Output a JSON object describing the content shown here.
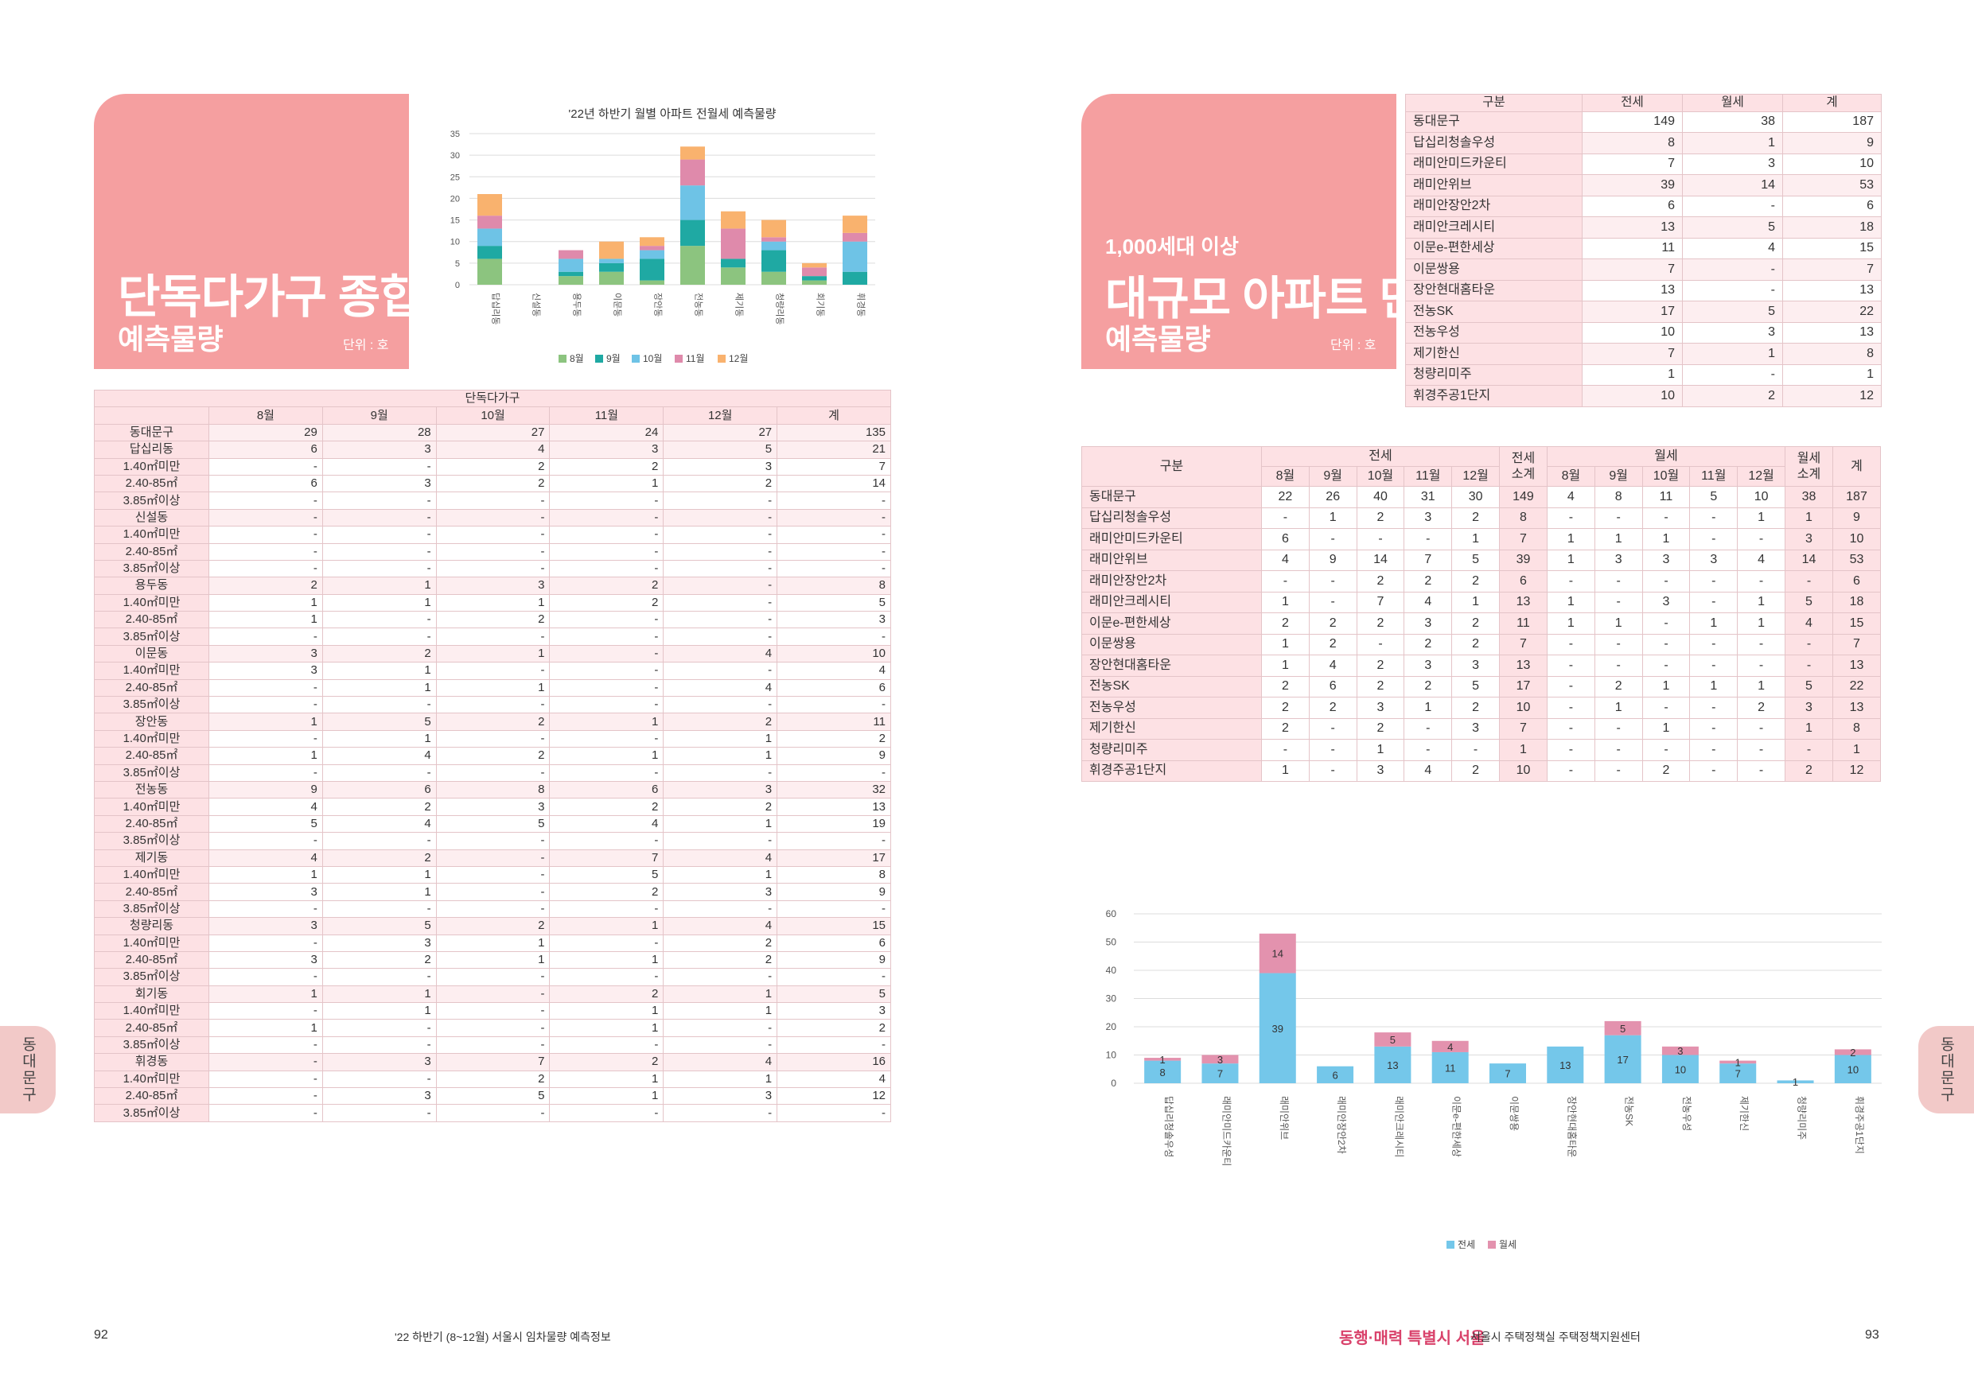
{
  "left": {
    "title_main": "단독다가구 종합",
    "title_sub": "예측물량",
    "unit": "단위 : 호",
    "page_number": "92",
    "footer_text": "'22 하반기 (8~12월) 서울시 임차물량 예측정보",
    "side_tab": "동대문구"
  },
  "right": {
    "title_pre": "1,000세대 이상",
    "title_main": "대규모 아파트 단지별",
    "title_sub": "예측물량",
    "unit": "단위 : 호",
    "page_number": "93",
    "footer_logo": "동행·매력 특별시 서울",
    "footer_text": "서울시 주택정책실 주택정책지원센터",
    "side_tab": "동대문구"
  },
  "colors": {
    "pink_box": "#f59fa0",
    "aug": "#8cc47f",
    "sep": "#1fa9a3",
    "oct": "#6ec3e6",
    "nov": "#df8aab",
    "dec": "#f9b26e",
    "jeonse": "#74c7ea",
    "wolse": "#e392ae"
  },
  "chart_data": [
    {
      "type": "bar",
      "stacked": true,
      "title": "'22년 하반기 월별 아파트 전월세 예측물량",
      "categories": [
        "답십리동",
        "신설동",
        "용두동",
        "이문동",
        "장안동",
        "전농동",
        "제기동",
        "청량리동",
        "회기동",
        "휘경동"
      ],
      "series": [
        {
          "name": "8월",
          "values": [
            6,
            0,
            2,
            3,
            1,
            9,
            4,
            3,
            1,
            0
          ]
        },
        {
          "name": "9월",
          "values": [
            3,
            0,
            1,
            2,
            5,
            6,
            2,
            5,
            1,
            3
          ]
        },
        {
          "name": "10월",
          "values": [
            4,
            0,
            3,
            1,
            2,
            8,
            0,
            2,
            0,
            7
          ]
        },
        {
          "name": "11월",
          "values": [
            3,
            0,
            2,
            0,
            1,
            6,
            7,
            1,
            2,
            2
          ]
        },
        {
          "name": "12월",
          "values": [
            5,
            0,
            0,
            4,
            2,
            3,
            4,
            4,
            1,
            4
          ]
        }
      ],
      "ylim": [
        0,
        35
      ],
      "yticks": [
        0,
        5,
        10,
        15,
        20,
        25,
        30,
        35
      ],
      "legend": "bottom",
      "grid": true
    },
    {
      "type": "bar",
      "stacked": true,
      "title": "",
      "categories": [
        "답십리청솔우성",
        "래미안미드카운티",
        "래미안위브",
        "래미안장안2차",
        "래미안크레시티",
        "이문e-편한세상",
        "이문쌍용",
        "장안현대홈타운",
        "전농SK",
        "전농우성",
        "제기한신",
        "청량리미주",
        "휘경주공1단지"
      ],
      "series": [
        {
          "name": "전세",
          "values": [
            8,
            7,
            39,
            6,
            13,
            11,
            7,
            13,
            17,
            10,
            7,
            1,
            10
          ]
        },
        {
          "name": "월세",
          "values": [
            1,
            3,
            14,
            0,
            5,
            4,
            0,
            0,
            5,
            3,
            1,
            0,
            2
          ]
        }
      ],
      "ylim": [
        0,
        60
      ],
      "yticks": [
        0,
        10,
        20,
        30,
        40,
        50,
        60
      ],
      "legend": "bottom",
      "grid": true
    }
  ],
  "table_detached": {
    "group_header": "단독다가구",
    "columns": [
      "8월",
      "9월",
      "10월",
      "11월",
      "12월",
      "계"
    ],
    "rows": [
      {
        "label": "동대문구",
        "values": [
          "29",
          "28",
          "27",
          "24",
          "27",
          "135"
        ],
        "group": true
      },
      {
        "label": "답십리동",
        "values": [
          "6",
          "3",
          "4",
          "3",
          "5",
          "21"
        ],
        "group": true
      },
      {
        "label": "1.40㎡미만",
        "values": [
          "-",
          "-",
          "2",
          "2",
          "3",
          "7"
        ]
      },
      {
        "label": "2.40-85㎡",
        "values": [
          "6",
          "3",
          "2",
          "1",
          "2",
          "14"
        ]
      },
      {
        "label": "3.85㎡이상",
        "values": [
          "-",
          "-",
          "-",
          "-",
          "-",
          "-"
        ]
      },
      {
        "label": "신설동",
        "values": [
          "-",
          "-",
          "-",
          "-",
          "-",
          "-"
        ],
        "group": true
      },
      {
        "label": "1.40㎡미만",
        "values": [
          "-",
          "-",
          "-",
          "-",
          "-",
          "-"
        ]
      },
      {
        "label": "2.40-85㎡",
        "values": [
          "-",
          "-",
          "-",
          "-",
          "-",
          "-"
        ]
      },
      {
        "label": "3.85㎡이상",
        "values": [
          "-",
          "-",
          "-",
          "-",
          "-",
          "-"
        ]
      },
      {
        "label": "용두동",
        "values": [
          "2",
          "1",
          "3",
          "2",
          "-",
          "8"
        ],
        "group": true
      },
      {
        "label": "1.40㎡미만",
        "values": [
          "1",
          "1",
          "1",
          "2",
          "-",
          "5"
        ]
      },
      {
        "label": "2.40-85㎡",
        "values": [
          "1",
          "-",
          "2",
          "-",
          "-",
          "3"
        ]
      },
      {
        "label": "3.85㎡이상",
        "values": [
          "-",
          "-",
          "-",
          "-",
          "-",
          "-"
        ]
      },
      {
        "label": "이문동",
        "values": [
          "3",
          "2",
          "1",
          "-",
          "4",
          "10"
        ],
        "group": true
      },
      {
        "label": "1.40㎡미만",
        "values": [
          "3",
          "1",
          "-",
          "-",
          "-",
          "4"
        ]
      },
      {
        "label": "2.40-85㎡",
        "values": [
          "-",
          "1",
          "1",
          "-",
          "4",
          "6"
        ]
      },
      {
        "label": "3.85㎡이상",
        "values": [
          "-",
          "-",
          "-",
          "-",
          "-",
          "-"
        ]
      },
      {
        "label": "장안동",
        "values": [
          "1",
          "5",
          "2",
          "1",
          "2",
          "11"
        ],
        "group": true
      },
      {
        "label": "1.40㎡미만",
        "values": [
          "-",
          "1",
          "-",
          "-",
          "1",
          "2"
        ]
      },
      {
        "label": "2.40-85㎡",
        "values": [
          "1",
          "4",
          "2",
          "1",
          "1",
          "9"
        ]
      },
      {
        "label": "3.85㎡이상",
        "values": [
          "-",
          "-",
          "-",
          "-",
          "-",
          "-"
        ]
      },
      {
        "label": "전농동",
        "values": [
          "9",
          "6",
          "8",
          "6",
          "3",
          "32"
        ],
        "group": true
      },
      {
        "label": "1.40㎡미만",
        "values": [
          "4",
          "2",
          "3",
          "2",
          "2",
          "13"
        ]
      },
      {
        "label": "2.40-85㎡",
        "values": [
          "5",
          "4",
          "5",
          "4",
          "1",
          "19"
        ]
      },
      {
        "label": "3.85㎡이상",
        "values": [
          "-",
          "-",
          "-",
          "-",
          "-",
          "-"
        ]
      },
      {
        "label": "제기동",
        "values": [
          "4",
          "2",
          "-",
          "7",
          "4",
          "17"
        ],
        "group": true
      },
      {
        "label": "1.40㎡미만",
        "values": [
          "1",
          "1",
          "-",
          "5",
          "1",
          "8"
        ]
      },
      {
        "label": "2.40-85㎡",
        "values": [
          "3",
          "1",
          "-",
          "2",
          "3",
          "9"
        ]
      },
      {
        "label": "3.85㎡이상",
        "values": [
          "-",
          "-",
          "-",
          "-",
          "-",
          "-"
        ]
      },
      {
        "label": "청량리동",
        "values": [
          "3",
          "5",
          "2",
          "1",
          "4",
          "15"
        ],
        "group": true
      },
      {
        "label": "1.40㎡미만",
        "values": [
          "-",
          "3",
          "1",
          "-",
          "2",
          "6"
        ]
      },
      {
        "label": "2.40-85㎡",
        "values": [
          "3",
          "2",
          "1",
          "1",
          "2",
          "9"
        ]
      },
      {
        "label": "3.85㎡이상",
        "values": [
          "-",
          "-",
          "-",
          "-",
          "-",
          "-"
        ]
      },
      {
        "label": "회기동",
        "values": [
          "1",
          "1",
          "-",
          "2",
          "1",
          "5"
        ],
        "group": true
      },
      {
        "label": "1.40㎡미만",
        "values": [
          "-",
          "1",
          "-",
          "1",
          "1",
          "3"
        ]
      },
      {
        "label": "2.40-85㎡",
        "values": [
          "1",
          "-",
          "-",
          "1",
          "-",
          "2"
        ]
      },
      {
        "label": "3.85㎡이상",
        "values": [
          "-",
          "-",
          "-",
          "-",
          "-",
          "-"
        ]
      },
      {
        "label": "휘경동",
        "values": [
          "-",
          "3",
          "7",
          "2",
          "4",
          "16"
        ],
        "group": true
      },
      {
        "label": "1.40㎡미만",
        "values": [
          "-",
          "-",
          "2",
          "1",
          "1",
          "4"
        ]
      },
      {
        "label": "2.40-85㎡",
        "values": [
          "-",
          "3",
          "5",
          "1",
          "3",
          "12"
        ]
      },
      {
        "label": "3.85㎡이상",
        "values": [
          "-",
          "-",
          "-",
          "-",
          "-",
          "-"
        ]
      }
    ]
  },
  "table_summary": {
    "columns": [
      "구분",
      "전세",
      "월세",
      "계"
    ],
    "rows": [
      {
        "label": "동대문구",
        "values": [
          "149",
          "38",
          "187"
        ]
      },
      {
        "label": "답십리청솔우성",
        "values": [
          "8",
          "1",
          "9"
        ]
      },
      {
        "label": "래미안미드카운티",
        "values": [
          "7",
          "3",
          "10"
        ]
      },
      {
        "label": "래미안위브",
        "values": [
          "39",
          "14",
          "53"
        ]
      },
      {
        "label": "래미안장안2차",
        "values": [
          "6",
          "-",
          "6"
        ]
      },
      {
        "label": "래미안크레시티",
        "values": [
          "13",
          "5",
          "18"
        ]
      },
      {
        "label": "이문e-편한세상",
        "values": [
          "11",
          "4",
          "15"
        ]
      },
      {
        "label": "이문쌍용",
        "values": [
          "7",
          "-",
          "7"
        ]
      },
      {
        "label": "장안현대홈타운",
        "values": [
          "13",
          "-",
          "13"
        ]
      },
      {
        "label": "전농SK",
        "values": [
          "17",
          "5",
          "22"
        ]
      },
      {
        "label": "전농우성",
        "values": [
          "10",
          "3",
          "13"
        ]
      },
      {
        "label": "제기한신",
        "values": [
          "7",
          "1",
          "8"
        ]
      },
      {
        "label": "청량리미주",
        "values": [
          "1",
          "-",
          "1"
        ]
      },
      {
        "label": "휘경주공1단지",
        "values": [
          "10",
          "2",
          "12"
        ]
      }
    ]
  },
  "table_monthly": {
    "header_label": "구분",
    "jeonse_label": "전세",
    "jeonse_sub_label": "전세 소계",
    "wolse_label": "월세",
    "wolse_sub_label": "월세 소계",
    "total_label": "계",
    "months": [
      "8월",
      "9월",
      "10월",
      "11월",
      "12월"
    ],
    "rows": [
      {
        "label": "동대문구",
        "jeonse": [
          "22",
          "26",
          "40",
          "31",
          "30"
        ],
        "jeonse_sub": "149",
        "wolse": [
          "4",
          "8",
          "11",
          "5",
          "10"
        ],
        "wolse_sub": "38",
        "total": "187"
      },
      {
        "label": "답십리청솔우성",
        "jeonse": [
          "-",
          "1",
          "2",
          "3",
          "2"
        ],
        "jeonse_sub": "8",
        "wolse": [
          "-",
          "-",
          "-",
          "-",
          "1"
        ],
        "wolse_sub": "1",
        "total": "9"
      },
      {
        "label": "래미안미드카운티",
        "jeonse": [
          "6",
          "-",
          "-",
          "-",
          "1"
        ],
        "jeonse_sub": "7",
        "wolse": [
          "1",
          "1",
          "1",
          "-",
          "-"
        ],
        "wolse_sub": "3",
        "total": "10"
      },
      {
        "label": "래미안위브",
        "jeonse": [
          "4",
          "9",
          "14",
          "7",
          "5"
        ],
        "jeonse_sub": "39",
        "wolse": [
          "1",
          "3",
          "3",
          "3",
          "4"
        ],
        "wolse_sub": "14",
        "total": "53"
      },
      {
        "label": "래미안장안2차",
        "jeonse": [
          "-",
          "-",
          "2",
          "2",
          "2"
        ],
        "jeonse_sub": "6",
        "wolse": [
          "-",
          "-",
          "-",
          "-",
          "-"
        ],
        "wolse_sub": "-",
        "total": "6"
      },
      {
        "label": "래미안크레시티",
        "jeonse": [
          "1",
          "-",
          "7",
          "4",
          "1"
        ],
        "jeonse_sub": "13",
        "wolse": [
          "1",
          "-",
          "3",
          "-",
          "1"
        ],
        "wolse_sub": "5",
        "total": "18"
      },
      {
        "label": "이문e-편한세상",
        "jeonse": [
          "2",
          "2",
          "2",
          "3",
          "2"
        ],
        "jeonse_sub": "11",
        "wolse": [
          "1",
          "1",
          "-",
          "1",
          "1"
        ],
        "wolse_sub": "4",
        "total": "15"
      },
      {
        "label": "이문쌍용",
        "jeonse": [
          "1",
          "2",
          "-",
          "2",
          "2"
        ],
        "jeonse_sub": "7",
        "wolse": [
          "-",
          "-",
          "-",
          "-",
          "-"
        ],
        "wolse_sub": "-",
        "total": "7"
      },
      {
        "label": "장안현대홈타운",
        "jeonse": [
          "1",
          "4",
          "2",
          "3",
          "3"
        ],
        "jeonse_sub": "13",
        "wolse": [
          "-",
          "-",
          "-",
          "-",
          "-"
        ],
        "wolse_sub": "-",
        "total": "13"
      },
      {
        "label": "전농SK",
        "jeonse": [
          "2",
          "6",
          "2",
          "2",
          "5"
        ],
        "jeonse_sub": "17",
        "wolse": [
          "-",
          "2",
          "1",
          "1",
          "1"
        ],
        "wolse_sub": "5",
        "total": "22"
      },
      {
        "label": "전농우성",
        "jeonse": [
          "2",
          "2",
          "3",
          "1",
          "2"
        ],
        "jeonse_sub": "10",
        "wolse": [
          "-",
          "1",
          "-",
          "-",
          "2"
        ],
        "wolse_sub": "3",
        "total": "13"
      },
      {
        "label": "제기한신",
        "jeonse": [
          "2",
          "-",
          "2",
          "-",
          "3"
        ],
        "jeonse_sub": "7",
        "wolse": [
          "-",
          "-",
          "1",
          "-",
          "-"
        ],
        "wolse_sub": "1",
        "total": "8"
      },
      {
        "label": "청량리미주",
        "jeonse": [
          "-",
          "-",
          "1",
          "-",
          "-"
        ],
        "jeonse_sub": "1",
        "wolse": [
          "-",
          "-",
          "-",
          "-",
          "-"
        ],
        "wolse_sub": "-",
        "total": "1"
      },
      {
        "label": "휘경주공1단지",
        "jeonse": [
          "1",
          "-",
          "3",
          "4",
          "2"
        ],
        "jeonse_sub": "10",
        "wolse": [
          "-",
          "-",
          "2",
          "-",
          "-"
        ],
        "wolse_sub": "2",
        "total": "12"
      }
    ]
  }
}
